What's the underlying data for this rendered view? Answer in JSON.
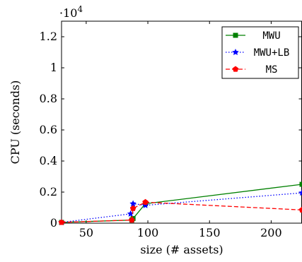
{
  "chart_data": {
    "type": "line",
    "title": "",
    "xlabel": "size (# assets)",
    "ylabel": "CPU (seconds)",
    "y_scale_label": "·10",
    "y_scale_exponent": "4",
    "xlim": [
      30,
      225
    ],
    "ylim": [
      0,
      13000
    ],
    "x_ticks": [
      50,
      100,
      150,
      200
    ],
    "x_tick_labels": [
      "50",
      "100",
      "150",
      "200"
    ],
    "y_ticks": [
      0,
      2000,
      4000,
      6000,
      8000,
      10000,
      12000
    ],
    "y_tick_labels": [
      "0",
      "0.2",
      "0.4",
      "0.6",
      "0.8",
      "1",
      "1.2"
    ],
    "grid": false,
    "legend_position": "top-right",
    "series": [
      {
        "name": "MWU",
        "color": "#008000",
        "line_style": "solid",
        "marker": "square",
        "x": [
          30,
          87,
          88,
          98,
          225
        ],
        "y": [
          50,
          200,
          300,
          1250,
          2500
        ]
      },
      {
        "name": "MWU+LB",
        "color": "#0000ff",
        "line_style": "dotted",
        "marker": "star",
        "x": [
          30,
          86,
          88,
          98,
          225
        ],
        "y": [
          50,
          600,
          1250,
          1150,
          1950
        ]
      },
      {
        "name": "MS",
        "color": "#ff0000",
        "line_style": "dashed",
        "marker": "pentagon",
        "x": [
          30,
          87,
          88,
          98,
          225
        ],
        "y": [
          50,
          200,
          950,
          1350,
          850
        ]
      }
    ]
  }
}
